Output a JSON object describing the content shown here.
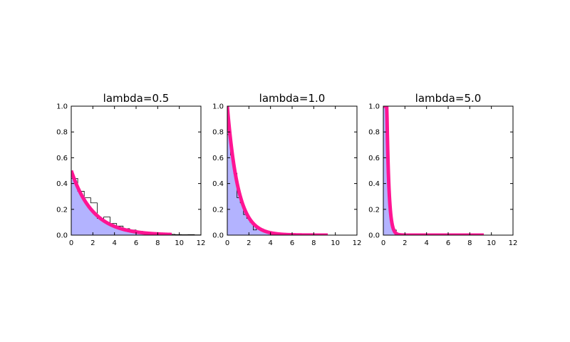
{
  "chart_data": [
    {
      "type": "area",
      "title": "lambda=0.5",
      "lambda": 0.5,
      "xlim": [
        0,
        12
      ],
      "ylim": [
        0,
        1.0
      ],
      "xticks": [
        "0",
        "2",
        "4",
        "6",
        "8",
        "10",
        "12"
      ],
      "yticks": [
        "0.0",
        "0.2",
        "0.4",
        "0.6",
        "0.8",
        "1.0"
      ],
      "curve_x_max": 9.3,
      "histogram": {
        "edges": [
          0.0,
          0.6,
          1.2,
          1.8,
          2.4,
          3.0,
          3.6,
          4.2,
          4.8,
          5.4,
          6.0,
          6.6,
          7.2,
          7.8,
          8.4,
          9.0,
          9.6,
          10.2,
          10.8,
          11.4,
          12.0
        ],
        "values": [
          0.44,
          0.34,
          0.29,
          0.25,
          0.13,
          0.14,
          0.09,
          0.07,
          0.05,
          0.04,
          0.03,
          0.02,
          0.015,
          0.01,
          0.008,
          0.006,
          0.004,
          0.003,
          0.004,
          0.002
        ]
      },
      "colors": {
        "fill": "#b3b3ff",
        "curve": "#ff1493"
      }
    },
    {
      "type": "area",
      "title": "lambda=1.0",
      "lambda": 1.0,
      "xlim": [
        0,
        12
      ],
      "ylim": [
        0,
        1.0
      ],
      "xticks": [
        "0",
        "2",
        "4",
        "6",
        "8",
        "10",
        "12"
      ],
      "yticks": [
        "0.0",
        "0.2",
        "0.4",
        "0.6",
        "0.8",
        "1.0"
      ],
      "curve_x_max": 9.3,
      "histogram": {
        "edges": [
          0.0,
          0.3,
          0.6,
          0.9,
          1.2,
          1.5,
          1.8,
          2.1,
          2.4,
          2.7,
          3.0,
          3.3,
          3.6,
          3.9,
          4.2,
          4.5,
          4.8,
          5.1,
          5.4,
          5.7,
          6.0
        ],
        "values": [
          0.78,
          0.62,
          0.48,
          0.29,
          0.25,
          0.16,
          0.13,
          0.1,
          0.04,
          0.06,
          0.05,
          0.035,
          0.025,
          0.02,
          0.015,
          0.01,
          0.008,
          0.006,
          0.004,
          0.003
        ]
      },
      "colors": {
        "fill": "#b3b3ff",
        "curve": "#ff1493"
      }
    },
    {
      "type": "area",
      "title": "lambda=5.0",
      "lambda": 5.0,
      "xlim": [
        0,
        12
      ],
      "ylim": [
        0,
        1.0
      ],
      "xticks": [
        "0",
        "2",
        "4",
        "6",
        "8",
        "10",
        "12"
      ],
      "yticks": [
        "0.0",
        "0.2",
        "0.4",
        "0.6",
        "0.8",
        "1.0"
      ],
      "curve_x_max": 9.3,
      "histogram": {
        "edges": [
          0.0,
          0.12,
          0.24,
          0.36,
          0.48,
          0.6,
          0.72,
          0.84,
          0.96,
          1.08,
          1.2,
          1.32,
          1.44
        ],
        "values": [
          1.0,
          1.0,
          1.0,
          0.62,
          0.38,
          0.21,
          0.1,
          0.07,
          0.03,
          0.04,
          0.01,
          0.005
        ]
      },
      "colors": {
        "fill": "#b3b3ff",
        "curve": "#ff1493"
      }
    }
  ]
}
